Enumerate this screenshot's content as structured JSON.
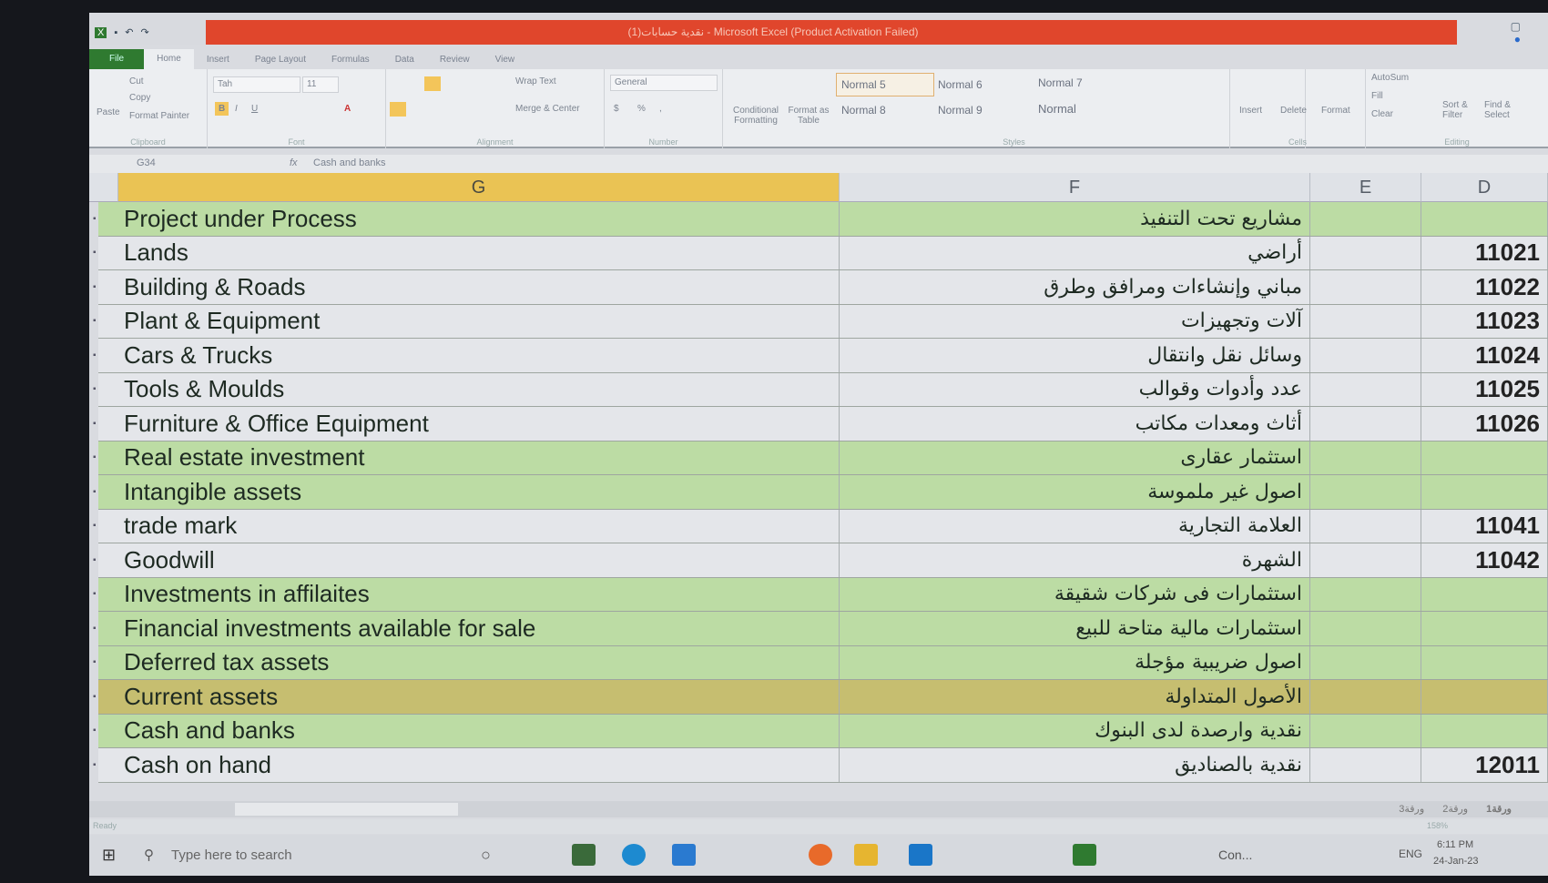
{
  "window": {
    "title": "نقدية حسابات(1) - Microsoft Excel (Product Activation Failed)"
  },
  "ribbon_tabs": [
    "File",
    "Home",
    "Insert",
    "Page Layout",
    "Formulas",
    "Data",
    "Review",
    "View"
  ],
  "clipboard": {
    "paste": "Paste",
    "cut": "Cut",
    "copy": "Copy",
    "format_painter": "Format Painter",
    "label": "Clipboard"
  },
  "font": {
    "name": "Tah",
    "size": "11",
    "label": "Font",
    "bold": "B",
    "italic": "I",
    "underline": "U"
  },
  "alignment": {
    "wrap": "Wrap Text",
    "merge": "Merge & Center",
    "label": "Alignment"
  },
  "number": {
    "format": "General",
    "currency": "$",
    "percent": "%",
    "comma": ",",
    "label": "Number"
  },
  "styles": {
    "cond": "Conditional Formatting",
    "table": "Format as Table",
    "items": [
      "Normal 5",
      "Normal 6",
      "Normal 7",
      "Normal 8",
      "Normal 9",
      "Normal"
    ],
    "label": "Styles"
  },
  "cells": {
    "insert": "Insert",
    "delete": "Delete",
    "format": "Format",
    "label": "Cells"
  },
  "editing": {
    "autosum": "AutoSum",
    "fill": "Fill",
    "clear": "Clear",
    "sort": "Sort & Filter",
    "find": "Find & Select",
    "label": "Editing"
  },
  "formula_bar": {
    "name_box": "G34",
    "fx": "fx",
    "value": "Cash and banks"
  },
  "columns": [
    "G",
    "F",
    "E",
    "D"
  ],
  "rows": [
    {
      "en": "Project under Process",
      "ar": "مشاريع تحت التنفيذ",
      "code": "",
      "fill": "green"
    },
    {
      "en": "Lands",
      "ar": "أراضي",
      "code": "11021",
      "fill": "white"
    },
    {
      "en": "Building & Roads",
      "ar": "مباني وإنشاءات ومرافق وطرق",
      "code": "11022",
      "fill": "white"
    },
    {
      "en": "Plant & Equipment",
      "ar": "آلات وتجهيزات",
      "code": "11023",
      "fill": "white"
    },
    {
      "en": "Cars & Trucks",
      "ar": "وسائل نقل وانتقال",
      "code": "11024",
      "fill": "white"
    },
    {
      "en": "Tools & Moulds",
      "ar": "عدد وأدوات وقوالب",
      "code": "11025",
      "fill": "white"
    },
    {
      "en": "Furniture & Office Equipment",
      "ar": "أثاث ومعدات مكاتب",
      "code": "11026",
      "fill": "white"
    },
    {
      "en": "Real estate investment",
      "ar": "استثمار عقارى",
      "code": "",
      "fill": "green"
    },
    {
      "en": "Intangible assets",
      "ar": "اصول غير ملموسة",
      "code": "",
      "fill": "green"
    },
    {
      "en": "trade mark",
      "ar": "العلامة التجارية",
      "code": "11041",
      "fill": "white"
    },
    {
      "en": "Goodwill",
      "ar": "الشهرة",
      "code": "11042",
      "fill": "white"
    },
    {
      "en": "Investments in affilaites",
      "ar": "استثمارات فى شركات شقيقة",
      "code": "",
      "fill": "green"
    },
    {
      "en": "Financial investments available for sale",
      "ar": "استثمارات مالية متاحة للبيع",
      "code": "",
      "fill": "green"
    },
    {
      "en": "Deferred tax assets",
      "ar": "اصول ضريبية مؤجلة",
      "code": "",
      "fill": "green"
    },
    {
      "en": "Current assets",
      "ar": "الأصول المتداولة",
      "code": "",
      "fill": "olive"
    },
    {
      "en": "Cash and banks",
      "ar": "نقدية وارصدة لدى البنوك",
      "code": "",
      "fill": "green"
    },
    {
      "en": "Cash on hand",
      "ar": "نقدية بالصناديق",
      "code": "12011",
      "fill": "white"
    }
  ],
  "sheet_tabs": [
    "ورقة3",
    "ورقة2",
    "ورقة1"
  ],
  "status": {
    "ready": "Ready",
    "zoom": "158%"
  },
  "taskbar": {
    "search_placeholder": "Type here to search",
    "weather": "Con...",
    "lang": "ENG",
    "time": "6:11 PM",
    "date": "24-Jan-23"
  },
  "colors": {
    "title": "#e0462c",
    "green_row": "#bcdca4",
    "olive_row": "#c6be70",
    "selected_header": "#eac354"
  }
}
